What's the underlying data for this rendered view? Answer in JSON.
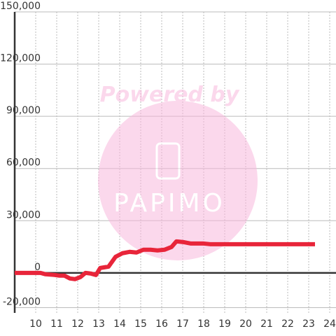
{
  "chart_data": {
    "type": "line",
    "watermark": {
      "line1": "Powered by",
      "line2": "PAPIMO"
    },
    "x": [
      9,
      10.23,
      10.47,
      10.9,
      11.13,
      11.37,
      11.63,
      11.87,
      12.13,
      12.37,
      12.63,
      12.87,
      13.07,
      13.47,
      13.8,
      14.13,
      14.47,
      14.8,
      15.13,
      15.47,
      15.8,
      16.13,
      16.47,
      16.7,
      17.03,
      17.37,
      17.97,
      18.3,
      19.97,
      23.3
    ],
    "series": [
      {
        "color": "#e8253a",
        "values": [
          0,
          0,
          -800,
          -1200,
          -1600,
          -1600,
          -3200,
          -3600,
          -2400,
          0,
          -400,
          -1200,
          2800,
          3600,
          9200,
          11300,
          12100,
          11700,
          13300,
          13300,
          12900,
          13300,
          14900,
          18100,
          17700,
          16900,
          16900,
          16500,
          16500,
          16500
        ]
      }
    ],
    "xlim": [
      9,
      24.3
    ],
    "ylim": [
      -23000,
      150000
    ],
    "xticks": [
      10,
      11,
      12,
      13,
      14,
      15,
      16,
      17,
      18,
      19,
      20,
      21,
      22,
      23,
      24
    ],
    "yticks": [
      {
        "value": -20000,
        "label": "-20,000"
      },
      0,
      {
        "value": 30000,
        "label": "30,000"
      },
      {
        "value": 60000,
        "label": "60,000"
      },
      {
        "value": 90000,
        "label": "90,000"
      },
      {
        "value": 120000,
        "label": "120,000"
      },
      {
        "value": 150000,
        "label": "150,000"
      }
    ],
    "grid": true
  }
}
